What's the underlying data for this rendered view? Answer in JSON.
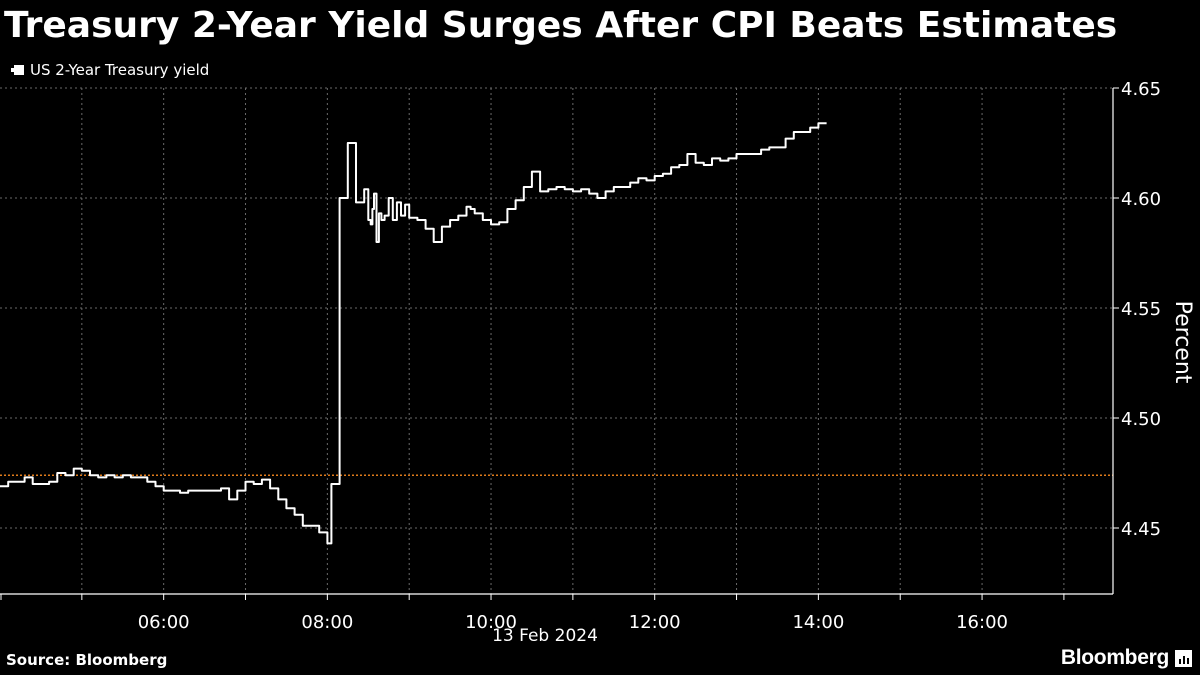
{
  "title": "Treasury 2-Year Yield Surges After CPI Beats Estimates",
  "legend": {
    "series_label": "US 2-Year Treasury yield"
  },
  "footer": {
    "source": "Source: Bloomberg",
    "brand": "Bloomberg"
  },
  "colors": {
    "background": "#000000",
    "line": "#ffffff",
    "reference_line": "#e07b1a",
    "grid": "#6a6a6a"
  },
  "chart_data": {
    "type": "line",
    "ylabel": "Percent",
    "xlabel": "13 Feb 2024",
    "ylim": [
      4.42,
      4.65
    ],
    "xlim_hours": [
      4.0,
      17.6
    ],
    "y_ticks": [
      4.45,
      4.5,
      4.55,
      4.6,
      4.65
    ],
    "y_tick_labels": [
      "4.45",
      "4.50",
      "4.55",
      "4.60",
      "4.65"
    ],
    "x_ticks_hours": [
      6,
      8,
      10,
      12,
      14,
      16
    ],
    "x_tick_labels": [
      "06:00",
      "08:00",
      "10:00",
      "12:00",
      "14:00",
      "16:00"
    ],
    "minor_x_ticks_hours": [
      5,
      7,
      9,
      11,
      13,
      15,
      17
    ],
    "reference_line": 4.474,
    "grid": true,
    "series": [
      {
        "x_hours": [
          4.0,
          4.1,
          4.2,
          4.3,
          4.4,
          4.5,
          4.6,
          4.7,
          4.8,
          4.9,
          5.0,
          5.1,
          5.2,
          5.3,
          5.4,
          5.5,
          5.6,
          5.7,
          5.8,
          5.9,
          6.0,
          6.1,
          6.2,
          6.3,
          6.4,
          6.5,
          6.6,
          6.7,
          6.8,
          6.9,
          7.0,
          7.1,
          7.2,
          7.3,
          7.4,
          7.5,
          7.6,
          7.7,
          7.8,
          7.9,
          8.0,
          8.05,
          8.15,
          8.25,
          8.35,
          8.45,
          8.5,
          8.53,
          8.55,
          8.57,
          8.6,
          8.63,
          8.66,
          8.7,
          8.75,
          8.8,
          8.85,
          8.9,
          8.95,
          9.0,
          9.1,
          9.2,
          9.3,
          9.4,
          9.5,
          9.6,
          9.7,
          9.75,
          9.8,
          9.9,
          10.0,
          10.1,
          10.2,
          10.3,
          10.4,
          10.5,
          10.6,
          10.7,
          10.8,
          10.9,
          11.0,
          11.1,
          11.2,
          11.3,
          11.4,
          11.5,
          11.6,
          11.7,
          11.8,
          11.9,
          12.0,
          12.1,
          12.2,
          12.3,
          12.4,
          12.5,
          12.6,
          12.7,
          12.8,
          12.9,
          13.0,
          13.1,
          13.2,
          13.3,
          13.4,
          13.5,
          13.6,
          13.7,
          13.8,
          13.9,
          14.0,
          14.1
        ],
        "values": [
          4.469,
          4.471,
          4.471,
          4.473,
          4.47,
          4.47,
          4.471,
          4.475,
          4.474,
          4.477,
          4.476,
          4.474,
          4.473,
          4.474,
          4.473,
          4.474,
          4.473,
          4.473,
          4.471,
          4.469,
          4.467,
          4.467,
          4.466,
          4.467,
          4.467,
          4.467,
          4.467,
          4.468,
          4.463,
          4.467,
          4.471,
          4.47,
          4.472,
          4.468,
          4.463,
          4.459,
          4.456,
          4.451,
          4.451,
          4.448,
          4.443,
          4.47,
          4.6,
          4.625,
          4.598,
          4.604,
          4.59,
          4.588,
          4.595,
          4.602,
          4.58,
          4.593,
          4.59,
          4.592,
          4.6,
          4.59,
          4.598,
          4.592,
          4.597,
          4.591,
          4.59,
          4.586,
          4.58,
          4.587,
          4.59,
          4.592,
          4.596,
          4.595,
          4.593,
          4.59,
          4.588,
          4.589,
          4.595,
          4.599,
          4.605,
          4.612,
          4.603,
          4.604,
          4.605,
          4.604,
          4.603,
          4.604,
          4.602,
          4.6,
          4.603,
          4.605,
          4.605,
          4.607,
          4.609,
          4.608,
          4.61,
          4.611,
          4.614,
          4.615,
          4.62,
          4.616,
          4.615,
          4.618,
          4.617,
          4.618,
          4.62,
          4.62,
          4.62,
          4.622,
          4.623,
          4.623,
          4.627,
          4.63,
          4.63,
          4.632,
          4.634,
          4.634
        ]
      }
    ]
  }
}
